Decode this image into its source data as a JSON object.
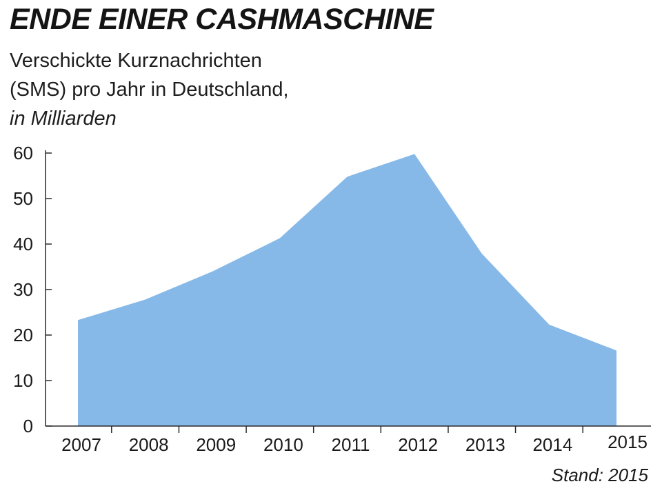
{
  "chart_data": {
    "type": "area",
    "title": "ENDE EINER CASHMASCHINE",
    "subtitle_lines": [
      "Verschickte Kurznachrichten",
      "(SMS) pro Jahr in Deutschland,"
    ],
    "unit_label": "in Milliarden",
    "categories": [
      "2007",
      "2008",
      "2009",
      "2010",
      "2011",
      "2012",
      "2013",
      "2014",
      "2015"
    ],
    "values": [
      23.3,
      27.8,
      34.0,
      41.3,
      54.8,
      59.8,
      37.9,
      22.3,
      16.6
    ],
    "ylim": [
      0,
      60
    ],
    "yticks": [
      0,
      10,
      20,
      30,
      40,
      50,
      60
    ],
    "xlabel": "",
    "ylabel": "",
    "grid": false,
    "fill_color": "#86b9e8",
    "source_note": "Stand: 2015"
  }
}
